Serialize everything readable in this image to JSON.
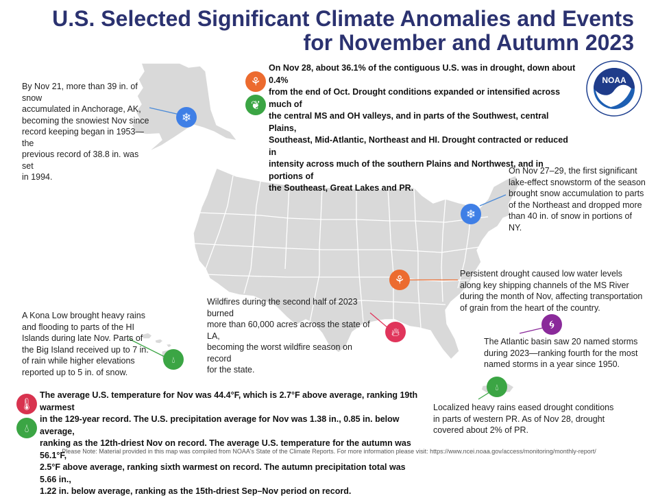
{
  "title": {
    "line1": "U.S. Selected Significant Climate Anomalies and Events",
    "line2": "for November and Autumn 2023"
  },
  "logo": {
    "text": "NOAA",
    "ring_text": "NATIONAL OCEANIC AND ATMOSPHERIC ADMINISTRATION · U.S. DEPARTMENT OF COMMERCE"
  },
  "colors": {
    "title": "#2b3270",
    "snow_icon": "#3f7fe6",
    "drought_icon": "#ec6b2f",
    "wet_icon": "#3ba544",
    "fire_icon": "#e0355b",
    "storm_icon": "#8a2a9a",
    "temperature_icon": "#d8334f",
    "map_fill": "#d9d9d9"
  },
  "annotations": {
    "alaska": [
      "By Nov 21, more than 39 in. of snow",
      "accumulated in Anchorage, AK,",
      "becoming the snowiest Nov since",
      "record keeping began in 1953—the",
      "previous record of 38.8 in. was set",
      "in 1994."
    ],
    "drought": [
      "On Nov 28, about 36.1% of the contiguous U.S. was in drought, down about 0.4%",
      "from the end of Oct. Drought conditions expanded or intensified across much of",
      "the central MS and OH valleys, and in parts of the Southwest, central Plains,",
      "Southeast, Mid-Atlantic, Northeast and HI. Drought contracted or reduced in",
      "intensity across much of the southern Plains and Northwest, and in portions of",
      "the Southeast, Great Lakes and PR."
    ],
    "lake_effect": [
      "On Nov 27–29, the first significant",
      "lake-effect snowstorm of the season",
      "brought snow accumulation to parts",
      "of the Northeast and dropped more",
      "than 40 in. of snow in portions of NY."
    ],
    "ms_river": [
      "Persistent drought caused low water levels",
      "along key shipping channels of the MS River",
      "during the month of Nov, affecting transportation",
      "of grain from the heart of the country."
    ],
    "wildfire": [
      "Wildfires during the second half of 2023 burned",
      "more than 60,000 acres across the state of LA,",
      "becoming the worst wildfire season on record",
      "for the state."
    ],
    "hawaii": [
      "A Kona Low brought heavy rains",
      "and flooding to parts of the HI",
      "Islands during late Nov. Parts of",
      "the Big Island received up to 7 in.",
      "of rain while higher elevations",
      "reported up to 5 in. of snow."
    ],
    "atlantic": [
      "The Atlantic basin saw 20 named storms",
      "during 2023—ranking fourth for the most",
      "named storms in a year since 1950."
    ],
    "pr": [
      "Localized heavy rains eased drought conditions",
      "in parts of western PR. As of Nov 28, drought",
      "covered about 2% of PR."
    ],
    "national": [
      "The average U.S. temperature for Nov was 44.4°F, which is 2.7°F above average, ranking 19th warmest",
      "in the 129-year record. The U.S. precipitation average for Nov was 1.38 in., 0.85 in. below average,",
      "ranking as the 12th-driest Nov on record. The average U.S. temperature for the autumn was 56.1°F,",
      "2.5°F above average, ranking sixth warmest on record. The autumn precipitation total was 5.66 in.,",
      "1.22 in. below average, ranking as the 15th-driest Sep–Nov period on record."
    ]
  },
  "icons": {
    "snow": "snowflake-icon",
    "drought": "dry-plant-icon",
    "wet": "healthy-plant-icon",
    "flood": "raindrops-icon",
    "fire": "flame-icon",
    "storm": "hurricane-icon",
    "temperature": "thermometer-icon",
    "precip": "raindrop-icon"
  },
  "footer": "Please Note: Material provided in this map was compiled from NOAA's State of the Climate Reports. For more information please visit: https://www.ncei.noaa.gov/access/monitoring/monthly-report/"
}
